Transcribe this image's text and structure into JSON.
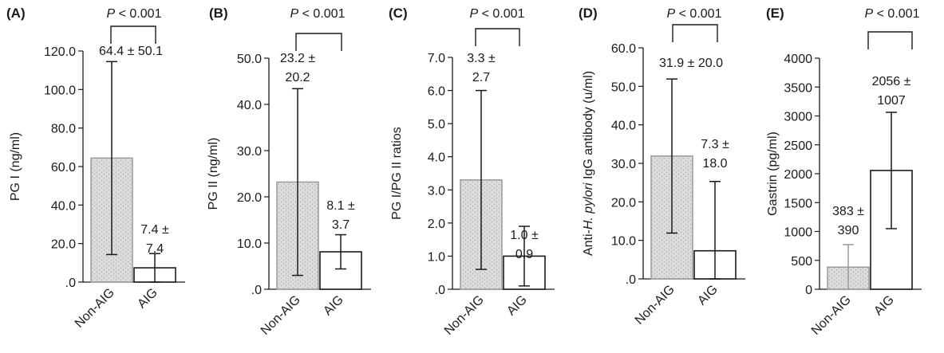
{
  "palette": {
    "ink": "#1a1a1a",
    "stipple_fill": "#dcdcdc",
    "stipple_dot": "#9a9a9a",
    "plain_fill": "#ffffff",
    "non_aig_whisker": "#9a9a9a"
  },
  "chart_data": [
    {
      "type": "bar",
      "panel": "(A)",
      "categories": [
        "Non-AIG",
        "AIG"
      ],
      "series": [
        {
          "values": [
            64.4,
            7.4
          ],
          "sd": [
            50.1,
            7.4
          ]
        }
      ],
      "labels": [
        "64.4 ± 50.1",
        "7.4 ±\n7.4"
      ],
      "significance": "P < 0.001",
      "ylabel": "PG I (ng/ml)",
      "ylim": [
        0,
        120
      ],
      "yticks": [
        0,
        20,
        40,
        60,
        80,
        100,
        120
      ],
      "ytick_labels": [
        ".0",
        "20.0",
        "40.0",
        "60.0",
        "80.0",
        "100.0",
        "120.0"
      ],
      "grid": false
    },
    {
      "type": "bar",
      "panel": "(B)",
      "categories": [
        "Non-AIG",
        "AIG"
      ],
      "series": [
        {
          "values": [
            23.2,
            8.1
          ],
          "sd": [
            20.2,
            3.7
          ]
        }
      ],
      "labels": [
        "23.2 ±\n20.2",
        "8.1 ±\n3.7"
      ],
      "significance": "P < 0.001",
      "ylabel": "PG II (ng/ml)",
      "ylim": [
        0,
        50
      ],
      "yticks": [
        0,
        10,
        20,
        30,
        40,
        50
      ],
      "ytick_labels": [
        ".0",
        "10.0",
        "20.0",
        "30.0",
        "40.0",
        "50.0"
      ],
      "grid": false
    },
    {
      "type": "bar",
      "panel": "(C)",
      "categories": [
        "Non-AIG",
        "AIG"
      ],
      "series": [
        {
          "values": [
            3.3,
            1.0
          ],
          "sd": [
            2.7,
            0.9
          ]
        }
      ],
      "labels": [
        "3.3 ±\n2.7",
        "1.0 ±\n0.9"
      ],
      "significance": "P < 0.001",
      "ylabel": "PG I/PG II ratios",
      "ylim": [
        0,
        7
      ],
      "yticks": [
        0,
        1,
        2,
        3,
        4,
        5,
        6,
        7
      ],
      "ytick_labels": [
        ".0",
        "1.0",
        "2.0",
        "3.0",
        "4.0",
        "5.0",
        "6.0",
        "7.0"
      ],
      "grid": false
    },
    {
      "type": "bar",
      "panel": "(D)",
      "categories": [
        "Non-AIG",
        "AIG"
      ],
      "series": [
        {
          "values": [
            31.9,
            7.3
          ],
          "sd": [
            20.0,
            18.0
          ]
        }
      ],
      "labels": [
        "31.9 ± 20.0",
        "7.3 ±\n18.0"
      ],
      "significance": "P < 0.001",
      "ylabel_parts": [
        "Anti-",
        "H. pylori",
        " IgG antibody (u/ml)"
      ],
      "ylim": [
        0,
        60
      ],
      "yticks": [
        0,
        10,
        20,
        30,
        40,
        50,
        60
      ],
      "ytick_labels": [
        ".0",
        "10.0",
        "20.0",
        "30.0",
        "40.0",
        "50.0",
        "60.0"
      ],
      "grid": false
    },
    {
      "type": "bar",
      "panel": "(E)",
      "categories": [
        "Non-AIG",
        "AIG"
      ],
      "series": [
        {
          "values": [
            383,
            2056
          ],
          "sd": [
            390,
            1007
          ]
        }
      ],
      "labels": [
        "383 ±\n390",
        "2056 ±\n1007"
      ],
      "significance": "P < 0.001",
      "ylabel": "Gastrin (pg/ml)",
      "ylim": [
        0,
        4000
      ],
      "yticks": [
        0,
        500,
        1000,
        1500,
        2000,
        2500,
        3000,
        3500,
        4000
      ],
      "ytick_labels": [
        "0",
        "500",
        "1000",
        "1500",
        "2000",
        "2500",
        "3000",
        "3500",
        "4000"
      ],
      "grid": false
    }
  ]
}
